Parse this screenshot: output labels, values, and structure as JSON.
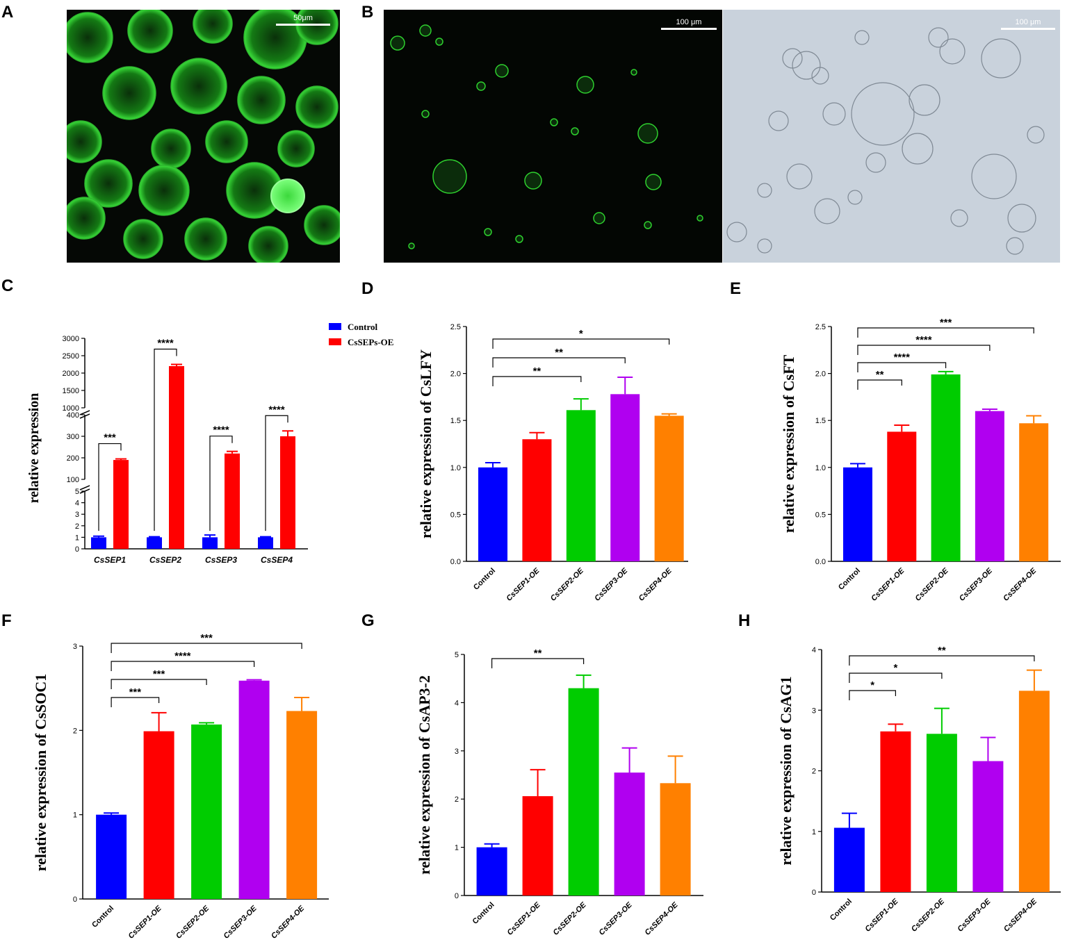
{
  "panel_letters": {
    "A": "A",
    "B": "B",
    "C": "C",
    "D": "D",
    "E": "E",
    "F": "F",
    "G": "G",
    "H": "H"
  },
  "micrographs": {
    "A_scale": "50μm",
    "B_left_scale": "100 μm",
    "B_right_scale": "100 μm"
  },
  "colors": {
    "control": "#0000ff",
    "sep1": "#ff0000",
    "sep2": "#00cc00",
    "sep3": "#b000f0",
    "sep4": "#ff8000"
  },
  "chart_data": [
    {
      "id": "C",
      "type": "bar",
      "ylabel": "relative expression",
      "categories": [
        "CsSEP1",
        "CsSEP2",
        "CsSEP3",
        "CsSEP4"
      ],
      "legend": [
        "Control",
        "CsSEPs-OE"
      ],
      "legend_position": "top-right",
      "series": [
        {
          "name": "Control",
          "values": [
            1.0,
            1.0,
            1.0,
            1.0
          ],
          "errors": [
            0.1,
            0.05,
            0.2,
            0.05
          ]
        },
        {
          "name": "CsSEPs-OE",
          "values": [
            190,
            2200,
            220,
            300
          ],
          "errors": [
            5,
            50,
            10,
            25
          ]
        }
      ],
      "broken_axis_segments": [
        {
          "range": [
            0,
            5
          ],
          "ticks": [
            0,
            1,
            2,
            3,
            4,
            5
          ]
        },
        {
          "range": [
            100,
            400
          ],
          "ticks": [
            100,
            200,
            300,
            400
          ]
        },
        {
          "range": [
            1000,
            3000
          ],
          "ticks": [
            1000,
            1500,
            2000,
            2500,
            3000
          ]
        }
      ],
      "significance": [
        "***",
        "****",
        "****",
        "****"
      ]
    },
    {
      "id": "D",
      "type": "bar",
      "ylabel": "relative expression of CsLFY",
      "categories": [
        "Control",
        "CsSEP1-OE",
        "CsSEP2-OE",
        "CsSEP3-OE",
        "CsSEP4-OE"
      ],
      "values": [
        1.0,
        1.3,
        1.61,
        1.78,
        1.55
      ],
      "errors": [
        0.05,
        0.07,
        0.12,
        0.18,
        0.02
      ],
      "ylim": [
        0,
        2.5
      ],
      "yticks": [
        "0.0",
        "0.5",
        "1.0",
        "1.5",
        "2.0",
        "2.5"
      ],
      "brackets": [
        {
          "to": 2,
          "label": "**"
        },
        {
          "to": 3,
          "label": "**"
        },
        {
          "to": 4,
          "label": "*"
        }
      ]
    },
    {
      "id": "E",
      "type": "bar",
      "ylabel": "relative expression of CsFT",
      "categories": [
        "Control",
        "CsSEP1-OE",
        "CsSEP2-OE",
        "CsSEP3-OE",
        "CsSEP4-OE"
      ],
      "values": [
        1.0,
        1.38,
        1.99,
        1.6,
        1.47
      ],
      "errors": [
        0.04,
        0.07,
        0.03,
        0.02,
        0.08
      ],
      "ylim": [
        0,
        2.5
      ],
      "yticks": [
        "0.0",
        "0.5",
        "1.0",
        "1.5",
        "2.0",
        "2.5"
      ],
      "brackets": [
        {
          "to": 1,
          "label": "**"
        },
        {
          "to": 2,
          "label": "****"
        },
        {
          "to": 3,
          "label": "****"
        },
        {
          "to": 4,
          "label": "***"
        }
      ]
    },
    {
      "id": "F",
      "type": "bar",
      "ylabel": "relative expression of CsSOC1",
      "categories": [
        "Control",
        "CsSEP1-OE",
        "CsSEP2-OE",
        "CsSEP3-OE",
        "CsSEP4-OE"
      ],
      "values": [
        1.0,
        1.99,
        2.07,
        2.59,
        2.23
      ],
      "errors": [
        0.02,
        0.22,
        0.02,
        0.01,
        0.16
      ],
      "ylim": [
        0,
        3
      ],
      "yticks": [
        "0",
        "1",
        "2",
        "3"
      ],
      "brackets": [
        {
          "to": 1,
          "label": "***"
        },
        {
          "to": 2,
          "label": "***"
        },
        {
          "to": 3,
          "label": "****"
        },
        {
          "to": 4,
          "label": "***"
        }
      ]
    },
    {
      "id": "G",
      "type": "bar",
      "ylabel": "relative expression of CsAP3-2",
      "categories": [
        "Control",
        "CsSEP1-OE",
        "CsSEP2-OE",
        "CsSEP3-OE",
        "CsSEP4-OE"
      ],
      "values": [
        1.0,
        2.06,
        4.3,
        2.55,
        2.33
      ],
      "errors": [
        0.07,
        0.55,
        0.27,
        0.51,
        0.56
      ],
      "ylim": [
        0,
        5
      ],
      "yticks": [
        "0",
        "1",
        "2",
        "3",
        "4",
        "5"
      ],
      "brackets": [
        {
          "to": 2,
          "label": "**"
        }
      ]
    },
    {
      "id": "H",
      "type": "bar",
      "ylabel": "relative expression of CsAG1",
      "categories": [
        "Control",
        "CsSEP1-OE",
        "CsSEP2-OE",
        "CsSEP3-OE",
        "CsSEP4-OE"
      ],
      "values": [
        1.06,
        2.65,
        2.61,
        2.16,
        3.32
      ],
      "errors": [
        0.24,
        0.12,
        0.42,
        0.39,
        0.34
      ],
      "ylim": [
        0,
        4
      ],
      "yticks": [
        "0",
        "1",
        "2",
        "3",
        "4"
      ],
      "brackets": [
        {
          "to": 1,
          "label": "*"
        },
        {
          "to": 2,
          "label": "*"
        },
        {
          "to": 4,
          "label": "**"
        }
      ]
    }
  ]
}
